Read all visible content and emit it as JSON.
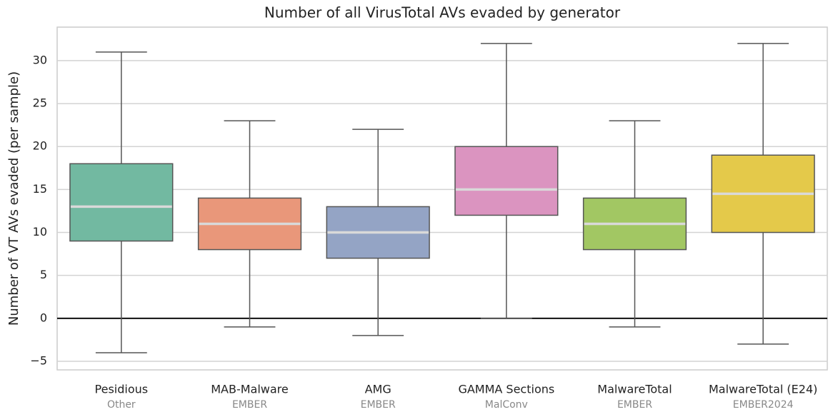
{
  "chart_data": {
    "type": "box",
    "title": "Number of all VirusTotal AVs evaded by generator",
    "y_label": "Number of VT AVs evaded (per sample)",
    "categories": [
      "Pesidious",
      "MAB-Malware",
      "AMG",
      "GAMMA Sections",
      "MalwareTotal",
      "MalwareTotal (E24)"
    ],
    "category_sublabels": [
      "Other",
      "EMBER",
      "EMBER",
      "MalConv",
      "EMBER",
      "EMBER2024"
    ],
    "boxes": [
      {
        "whislo": -4,
        "q1": 9,
        "med": 13,
        "q3": 18,
        "whishi": 31
      },
      {
        "whislo": -1,
        "q1": 8,
        "med": 11,
        "q3": 14,
        "whishi": 23
      },
      {
        "whislo": -2,
        "q1": 7,
        "med": 10,
        "q3": 13,
        "whishi": 22
      },
      {
        "whislo": 0,
        "q1": 12,
        "med": 15,
        "q3": 20,
        "whishi": 32
      },
      {
        "whislo": -1,
        "q1": 8,
        "med": 11,
        "q3": 14,
        "whishi": 23
      },
      {
        "whislo": -3,
        "q1": 10,
        "med": 14.5,
        "q3": 19,
        "whishi": 32
      }
    ],
    "colors": [
      "#72b9a1",
      "#e9977a",
      "#94a4c5",
      "#db94c0",
      "#a2c763",
      "#e4c94a"
    ],
    "ylim": [
      -6,
      33.9
    ],
    "yticks": [
      {
        "value": -5,
        "label": "−5"
      },
      0,
      5,
      10,
      15,
      20,
      25,
      30
    ],
    "reference_line": 0,
    "grid": true
  }
}
